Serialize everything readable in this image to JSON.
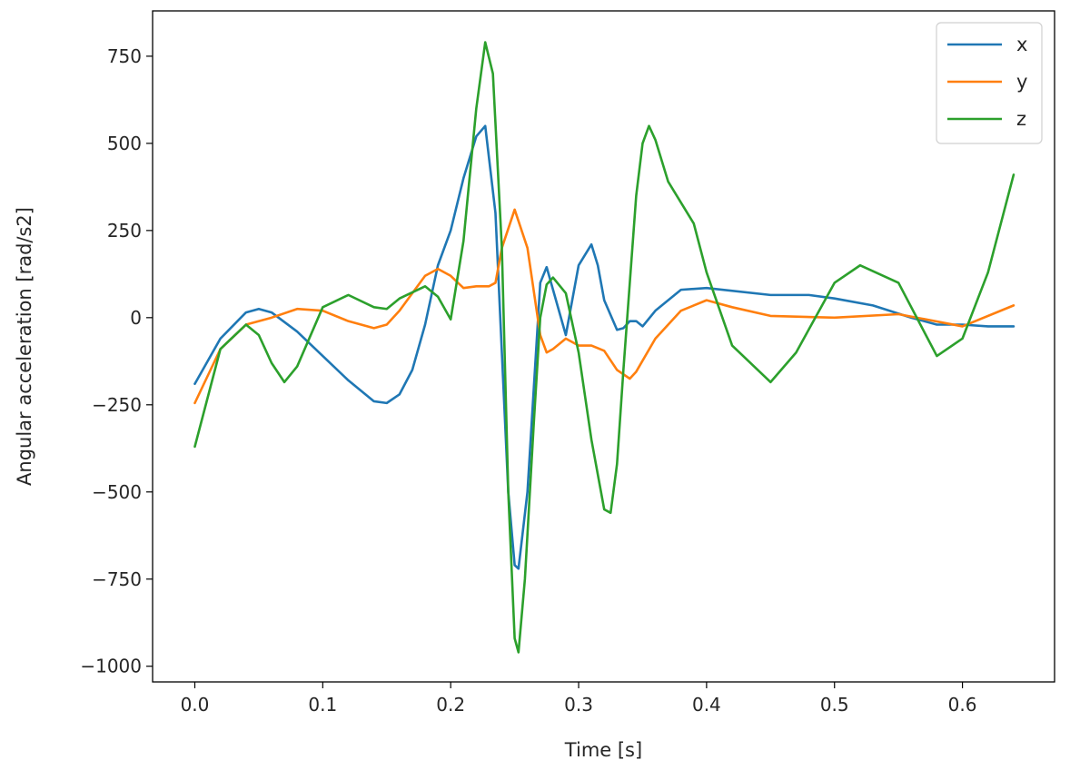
{
  "chart_data": {
    "type": "line",
    "title": "",
    "xlabel": "Time [s]",
    "ylabel": "Angular acceleration [rad/s2]",
    "xlim": [
      -0.033,
      0.672
    ],
    "ylim": [
      -1045,
      880
    ],
    "grid": false,
    "legend_position": "top-right",
    "xticks": [
      0.0,
      0.1,
      0.2,
      0.3,
      0.4,
      0.5,
      0.6
    ],
    "xtick_labels": [
      "0.0",
      "0.1",
      "0.2",
      "0.3",
      "0.4",
      "0.5",
      "0.6"
    ],
    "yticks": [
      750,
      500,
      250,
      0,
      -250,
      -500,
      -750,
      -1000
    ],
    "ytick_labels": [
      "750",
      "500",
      "250",
      "0",
      "−250",
      "−500",
      "−750",
      "−1000"
    ],
    "series": [
      {
        "name": "x",
        "color": "#1f77b4",
        "x": [
          0.0,
          0.02,
          0.04,
          0.05,
          0.06,
          0.08,
          0.1,
          0.12,
          0.14,
          0.15,
          0.16,
          0.17,
          0.18,
          0.19,
          0.2,
          0.21,
          0.22,
          0.227,
          0.235,
          0.24,
          0.245,
          0.25,
          0.253,
          0.26,
          0.265,
          0.27,
          0.275,
          0.28,
          0.29,
          0.3,
          0.31,
          0.315,
          0.32,
          0.33,
          0.335,
          0.34,
          0.345,
          0.35,
          0.36,
          0.38,
          0.4,
          0.45,
          0.48,
          0.5,
          0.53,
          0.56,
          0.58,
          0.6,
          0.62,
          0.64
        ],
        "y": [
          -190,
          -60,
          15,
          25,
          15,
          -40,
          -110,
          -180,
          -240,
          -245,
          -220,
          -150,
          -20,
          150,
          250,
          400,
          520,
          550,
          300,
          -100,
          -500,
          -710,
          -720,
          -500,
          -200,
          100,
          145,
          80,
          -50,
          150,
          210,
          150,
          50,
          -35,
          -30,
          -10,
          -10,
          -25,
          20,
          80,
          85,
          65,
          65,
          55,
          35,
          0,
          -20,
          -20,
          -25,
          -25
        ]
      },
      {
        "name": "y",
        "color": "#ff7f0e",
        "x": [
          0.0,
          0.02,
          0.04,
          0.06,
          0.08,
          0.1,
          0.12,
          0.14,
          0.15,
          0.16,
          0.18,
          0.19,
          0.2,
          0.21,
          0.22,
          0.23,
          0.235,
          0.24,
          0.25,
          0.26,
          0.27,
          0.275,
          0.28,
          0.29,
          0.3,
          0.31,
          0.32,
          0.33,
          0.34,
          0.345,
          0.36,
          0.38,
          0.4,
          0.42,
          0.45,
          0.5,
          0.55,
          0.6,
          0.64
        ],
        "y": [
          -245,
          -90,
          -20,
          0,
          25,
          20,
          -10,
          -30,
          -20,
          20,
          120,
          140,
          120,
          85,
          90,
          90,
          100,
          200,
          310,
          200,
          -50,
          -100,
          -90,
          -60,
          -80,
          -80,
          -95,
          -150,
          -175,
          -155,
          -60,
          20,
          50,
          30,
          5,
          0,
          10,
          -25,
          35
        ]
      },
      {
        "name": "z",
        "color": "#2ca02c",
        "x": [
          0.0,
          0.02,
          0.04,
          0.05,
          0.06,
          0.07,
          0.08,
          0.1,
          0.12,
          0.14,
          0.15,
          0.16,
          0.18,
          0.19,
          0.2,
          0.21,
          0.22,
          0.227,
          0.233,
          0.24,
          0.245,
          0.25,
          0.253,
          0.258,
          0.265,
          0.27,
          0.275,
          0.28,
          0.29,
          0.3,
          0.31,
          0.32,
          0.325,
          0.33,
          0.335,
          0.34,
          0.345,
          0.35,
          0.355,
          0.36,
          0.37,
          0.39,
          0.4,
          0.42,
          0.45,
          0.47,
          0.5,
          0.52,
          0.55,
          0.58,
          0.6,
          0.62,
          0.64
        ],
        "y": [
          -370,
          -90,
          -20,
          -50,
          -130,
          -185,
          -140,
          30,
          65,
          30,
          25,
          55,
          90,
          60,
          -5,
          220,
          600,
          790,
          700,
          200,
          -500,
          -920,
          -960,
          -750,
          -300,
          0,
          95,
          115,
          70,
          -100,
          -350,
          -550,
          -560,
          -420,
          -150,
          100,
          350,
          500,
          550,
          510,
          390,
          270,
          130,
          -80,
          -185,
          -100,
          100,
          150,
          100,
          -110,
          -60,
          130,
          410
        ]
      }
    ]
  }
}
